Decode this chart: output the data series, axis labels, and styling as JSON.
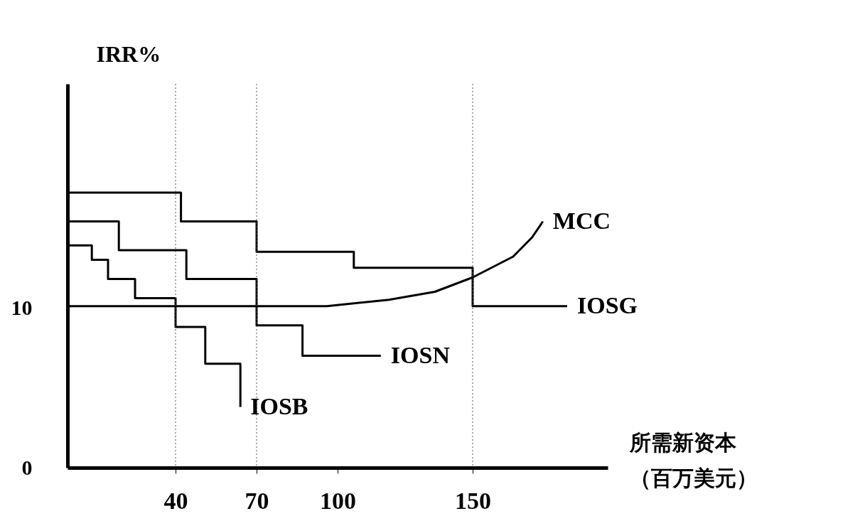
{
  "chart_data": {
    "type": "line",
    "xlabel": "所需新资本（百万美元）",
    "ylabel": "IRR%",
    "xlim": [
      0,
      200
    ],
    "ylim": [
      0,
      24
    ],
    "xticks": [
      40,
      70,
      100,
      150
    ],
    "yticks": [
      0,
      10
    ],
    "grid": false,
    "series": [
      {
        "name": "MCC",
        "color": "#000000",
        "x": [
          0,
          96,
          119,
          136,
          150,
          165,
          172,
          176
        ],
        "values": [
          10.1,
          10.1,
          10.5,
          11.0,
          11.9,
          13.2,
          14.4,
          15.4
        ]
      },
      {
        "name": "IOSG",
        "color": "#000000",
        "x": [
          0,
          42,
          42,
          70,
          70,
          106,
          106,
          150,
          150,
          185
        ],
        "values": [
          17.2,
          17.2,
          15.4,
          15.4,
          13.5,
          13.5,
          12.5,
          12.5,
          10.1,
          10.1
        ]
      },
      {
        "name": "IOSN",
        "color": "#000000",
        "x": [
          0,
          19,
          19,
          44,
          44,
          70,
          70,
          87,
          87,
          116
        ],
        "values": [
          15.4,
          15.4,
          13.6,
          13.6,
          11.8,
          11.8,
          8.9,
          8.9,
          7.0,
          7.0
        ]
      },
      {
        "name": "IOSB",
        "color": "#000000",
        "x": [
          0,
          9,
          9,
          15,
          15,
          25,
          25,
          40,
          40,
          51,
          51,
          64,
          64
        ],
        "values": [
          13.9,
          13.9,
          13.0,
          13.0,
          11.8,
          11.8,
          10.6,
          10.6,
          8.8,
          8.8,
          6.5,
          6.5,
          3.8
        ]
      }
    ],
    "ref_lines": [
      {
        "axis": "x",
        "value": 40,
        "line_style": "dotted",
        "color": "#555555"
      },
      {
        "axis": "x",
        "value": 70,
        "line_style": "dotted",
        "color": "#555555"
      },
      {
        "axis": "x",
        "value": 150,
        "line_style": "dotted",
        "color": "#555555"
      }
    ]
  }
}
